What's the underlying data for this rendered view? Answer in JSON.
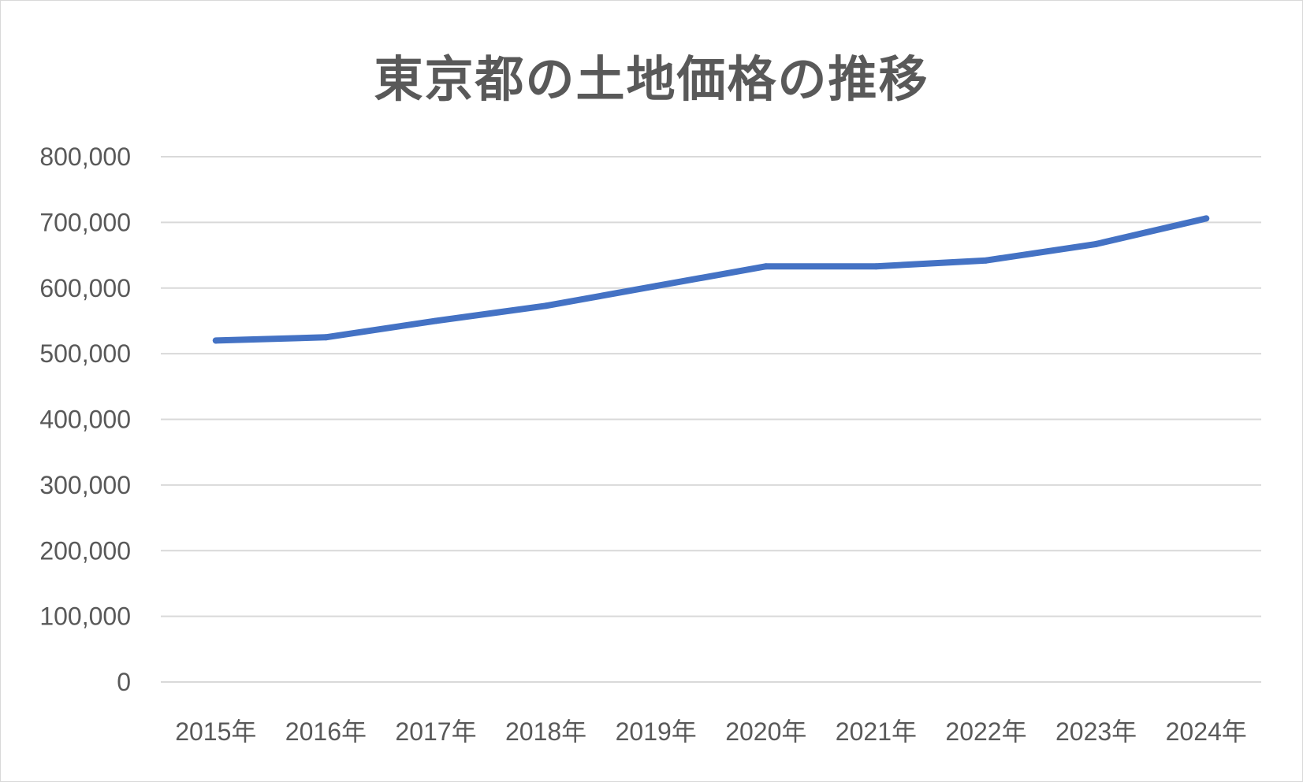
{
  "chart_data": {
    "type": "line",
    "title": "東京都の土地価格の推移",
    "xlabel": "",
    "ylabel": "",
    "categories": [
      "2015年",
      "2016年",
      "2017年",
      "2018年",
      "2019年",
      "2020年",
      "2021年",
      "2022年",
      "2023年",
      "2024年"
    ],
    "series": [
      {
        "values": [
          520000,
          525000,
          550000,
          573000,
          603000,
          633000,
          633000,
          642000,
          667000,
          706000
        ],
        "color": "#4472c4"
      }
    ],
    "ylim": [
      0,
      800000
    ],
    "y_ticks": [
      0,
      100000,
      200000,
      300000,
      400000,
      500000,
      600000,
      700000,
      800000
    ],
    "y_tick_labels": [
      "0",
      "100,000",
      "200,000",
      "300,000",
      "400,000",
      "500,000",
      "600,000",
      "700,000",
      "800,000"
    ],
    "grid": true,
    "legend": "none"
  }
}
